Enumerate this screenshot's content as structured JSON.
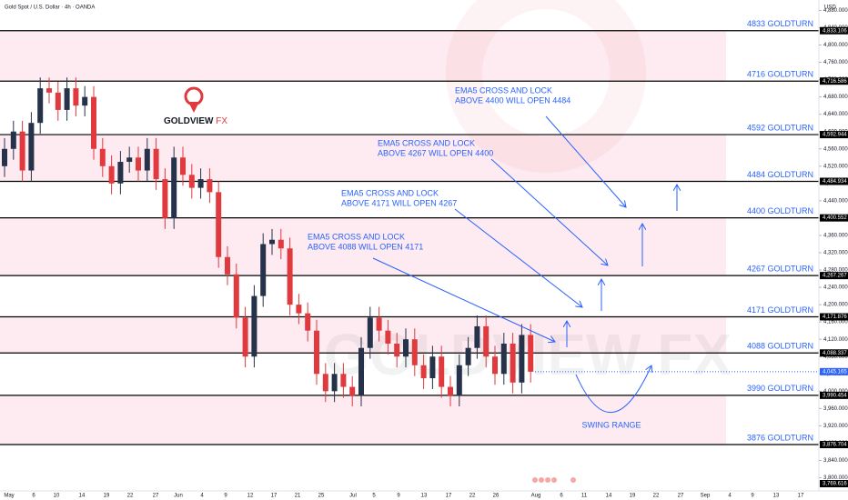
{
  "chart_data": {
    "type": "candlestick",
    "title": "Gold Spot / U.S. Dollar · 4h · OANDA",
    "currency": "USD",
    "up_color": "#26324a",
    "down_color": "#e0393e",
    "open": [
      4520,
      4560,
      4600,
      4510,
      4620,
      4700,
      4690,
      4650,
      4700,
      4660,
      4680,
      4560,
      4520,
      4480,
      4530,
      4540,
      4510,
      4560,
      4490,
      4400,
      4540,
      4500,
      4470,
      4490,
      4460,
      4310,
      4270,
      4170,
      4080,
      4220,
      4340,
      4350,
      4330,
      4200,
      4180,
      4140,
      4040,
      4000,
      4040,
      4010,
      3990,
      4100,
      4170,
      4140,
      4110,
      4080,
      4120,
      4060,
      4030,
      4080,
      4010,
      3990,
      4060,
      4100,
      4150,
      4080,
      4040,
      4110,
      4020,
      4130
    ],
    "high": [
      4585,
      4625,
      4625,
      4645,
      4725,
      4725,
      4715,
      4725,
      4725,
      4705,
      4705,
      4585,
      4545,
      4555,
      4565,
      4565,
      4585,
      4585,
      4515,
      4565,
      4565,
      4525,
      4515,
      4515,
      4485,
      4335,
      4295,
      4195,
      4245,
      4365,
      4375,
      4375,
      4355,
      4225,
      4205,
      4165,
      4065,
      4065,
      4065,
      4035,
      4125,
      4195,
      4195,
      4165,
      4135,
      4145,
      4145,
      4085,
      4105,
      4105,
      4035,
      4085,
      4125,
      4175,
      4175,
      4105,
      4135,
      4135,
      4155,
      4155
    ],
    "low": [
      4495,
      4535,
      4485,
      4485,
      4595,
      4665,
      4625,
      4625,
      4635,
      4635,
      4535,
      4495,
      4455,
      4455,
      4505,
      4485,
      4485,
      4465,
      4375,
      4375,
      4475,
      4445,
      4445,
      4435,
      4285,
      4245,
      4145,
      4055,
      4055,
      4195,
      4315,
      4305,
      4175,
      4155,
      4115,
      4015,
      3975,
      3975,
      3985,
      3965,
      3965,
      4075,
      4115,
      4085,
      4055,
      4055,
      4035,
      4005,
      4005,
      3985,
      3965,
      3965,
      4035,
      4075,
      4055,
      4015,
      4015,
      3995,
      3995,
      4020
    ],
    "close": [
      4560,
      4600,
      4510,
      4620,
      4700,
      4690,
      4650,
      4700,
      4660,
      4680,
      4560,
      4520,
      4480,
      4530,
      4540,
      4510,
      4560,
      4490,
      4400,
      4540,
      4500,
      4470,
      4490,
      4460,
      4310,
      4270,
      4170,
      4080,
      4220,
      4340,
      4350,
      4330,
      4200,
      4180,
      4140,
      4040,
      4000,
      4040,
      4010,
      3990,
      4100,
      4170,
      4140,
      4110,
      4080,
      4120,
      4060,
      4030,
      4080,
      4010,
      3990,
      4060,
      4100,
      4150,
      4080,
      4040,
      4110,
      4020,
      4130,
      4045
    ],
    "ylim": [
      3769.616,
      4904
    ],
    "yticks": [
      {
        "value": 3800,
        "label": "3,800.000"
      },
      {
        "value": 3840,
        "label": "3,840.000"
      },
      {
        "value": 3880,
        "label": "3,880.000"
      },
      {
        "value": 3920,
        "label": "3,920.000"
      },
      {
        "value": 3960,
        "label": "3,960.000"
      },
      {
        "value": 4000,
        "label": "4,000.000"
      },
      {
        "value": 4040,
        "label": "4,040.000"
      },
      {
        "value": 4080,
        "label": "4,080.000"
      },
      {
        "value": 4120,
        "label": "4,120.000"
      },
      {
        "value": 4160,
        "label": "4,160.000"
      },
      {
        "value": 4200,
        "label": "4,200.000"
      },
      {
        "value": 4240,
        "label": "4,240.000"
      },
      {
        "value": 4280,
        "label": "4,280.000"
      },
      {
        "value": 4320,
        "label": "4,320.000"
      },
      {
        "value": 4360,
        "label": "4,360.000"
      },
      {
        "value": 4400,
        "label": "4,400.000"
      },
      {
        "value": 4440,
        "label": "4,440.000"
      },
      {
        "value": 4480,
        "label": "4,480.000"
      },
      {
        "value": 4520,
        "label": "4,520.000"
      },
      {
        "value": 4560,
        "label": "4,560.000"
      },
      {
        "value": 4600,
        "label": "4,600.000"
      },
      {
        "value": 4640,
        "label": "4,640.000"
      },
      {
        "value": 4680,
        "label": "4,680.000"
      },
      {
        "value": 4720,
        "label": "4,720.000"
      },
      {
        "value": 4760,
        "label": "4,760.000"
      },
      {
        "value": 4800,
        "label": "4,800.000"
      },
      {
        "value": 4840,
        "label": "4,840.000"
      },
      {
        "value": 4880,
        "label": "4,880.000"
      }
    ],
    "x_labels": [
      "May",
      "6",
      "10",
      "14",
      "19",
      "22",
      "27",
      "Jun",
      "4",
      "9",
      "12",
      "17",
      "21",
      "25",
      "Jul",
      "5",
      "9",
      "13",
      "17",
      "22",
      "26",
      "Aug",
      "6",
      "11",
      "14",
      "19",
      "22",
      "27",
      "Sep",
      "4",
      "9",
      "13",
      "17"
    ],
    "levels": [
      {
        "value": 4833.106,
        "price_label": "4,833.106",
        "label": "4833 GOLDTURN"
      },
      {
        "value": 4716.586,
        "price_label": "4,716.586",
        "label": "4716 GOLDTURN"
      },
      {
        "value": 4592.944,
        "price_label": "4,592.944",
        "label": "4592 GOLDTURN"
      },
      {
        "value": 4484.934,
        "price_label": "4,484.934",
        "label": "4484 GOLDTURN"
      },
      {
        "value": 4400.552,
        "price_label": "4,400.552",
        "label": "4400 GOLDTURN"
      },
      {
        "value": 4267.267,
        "price_label": "4,267.267",
        "label": "4267 GOLDTURN"
      },
      {
        "value": 4171.876,
        "price_label": "4,171.876",
        "label": "4171 GOLDTURN"
      },
      {
        "value": 4088.337,
        "price_label": "4,088.337",
        "label": "4088 GOLDTURN"
      },
      {
        "value": 3990.454,
        "price_label": "3,990.454",
        "label": "3990 GOLDTURN"
      },
      {
        "value": 3876.704,
        "price_label": "3,876.704",
        "label": "3876 GOLDTURN"
      }
    ],
    "current_price": {
      "value": 4045.165,
      "label": "4,045.165"
    },
    "bottom_marker": {
      "value": 3769.616,
      "label": "3,769.616"
    },
    "annotations": [
      [
        "EMA5 CROSS AND LOCK",
        "ABOVE 4400 WILL OPEN 4484"
      ],
      [
        "EMA5 CROSS AND LOCK",
        "ABOVE 4267 WILL OPEN 4400"
      ],
      [
        "EMA5 CROSS AND LOCK",
        "ABOVE 4171 WILL OPEN 4267"
      ],
      [
        "EMA5 CROSS AND LOCK",
        "ABOVE 4088 WILL OPEN 4171"
      ]
    ],
    "swing_label": "SWING RANGE",
    "logo": [
      "GOLDVIEW",
      "FX"
    ],
    "watermark": "GOLDVIEW FX"
  }
}
